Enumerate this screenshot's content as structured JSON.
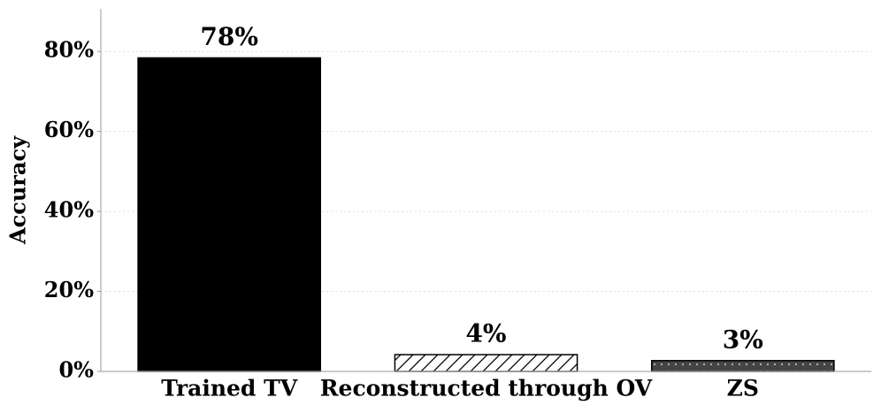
{
  "chart_data": {
    "type": "bar",
    "y_label": "Accuracy",
    "categories": [
      "Trained TV",
      "Reconstructed through OV",
      "ZS"
    ],
    "values": [
      78.4,
      4.2,
      2.7
    ],
    "value_labels": [
      "78%",
      "4%",
      "3%"
    ],
    "colors": [
      "#000000",
      "#ffffff",
      "#444444"
    ],
    "hatches": [
      "none",
      "/",
      "."
    ],
    "ylim": [
      0,
      90
    ],
    "yticks": [
      {
        "value": 0,
        "label": "0%"
      },
      {
        "value": 20,
        "label": "20%"
      },
      {
        "value": 40,
        "label": "40%"
      },
      {
        "value": 60,
        "label": "60%"
      },
      {
        "value": 80,
        "label": "80%"
      }
    ],
    "grid": true
  }
}
